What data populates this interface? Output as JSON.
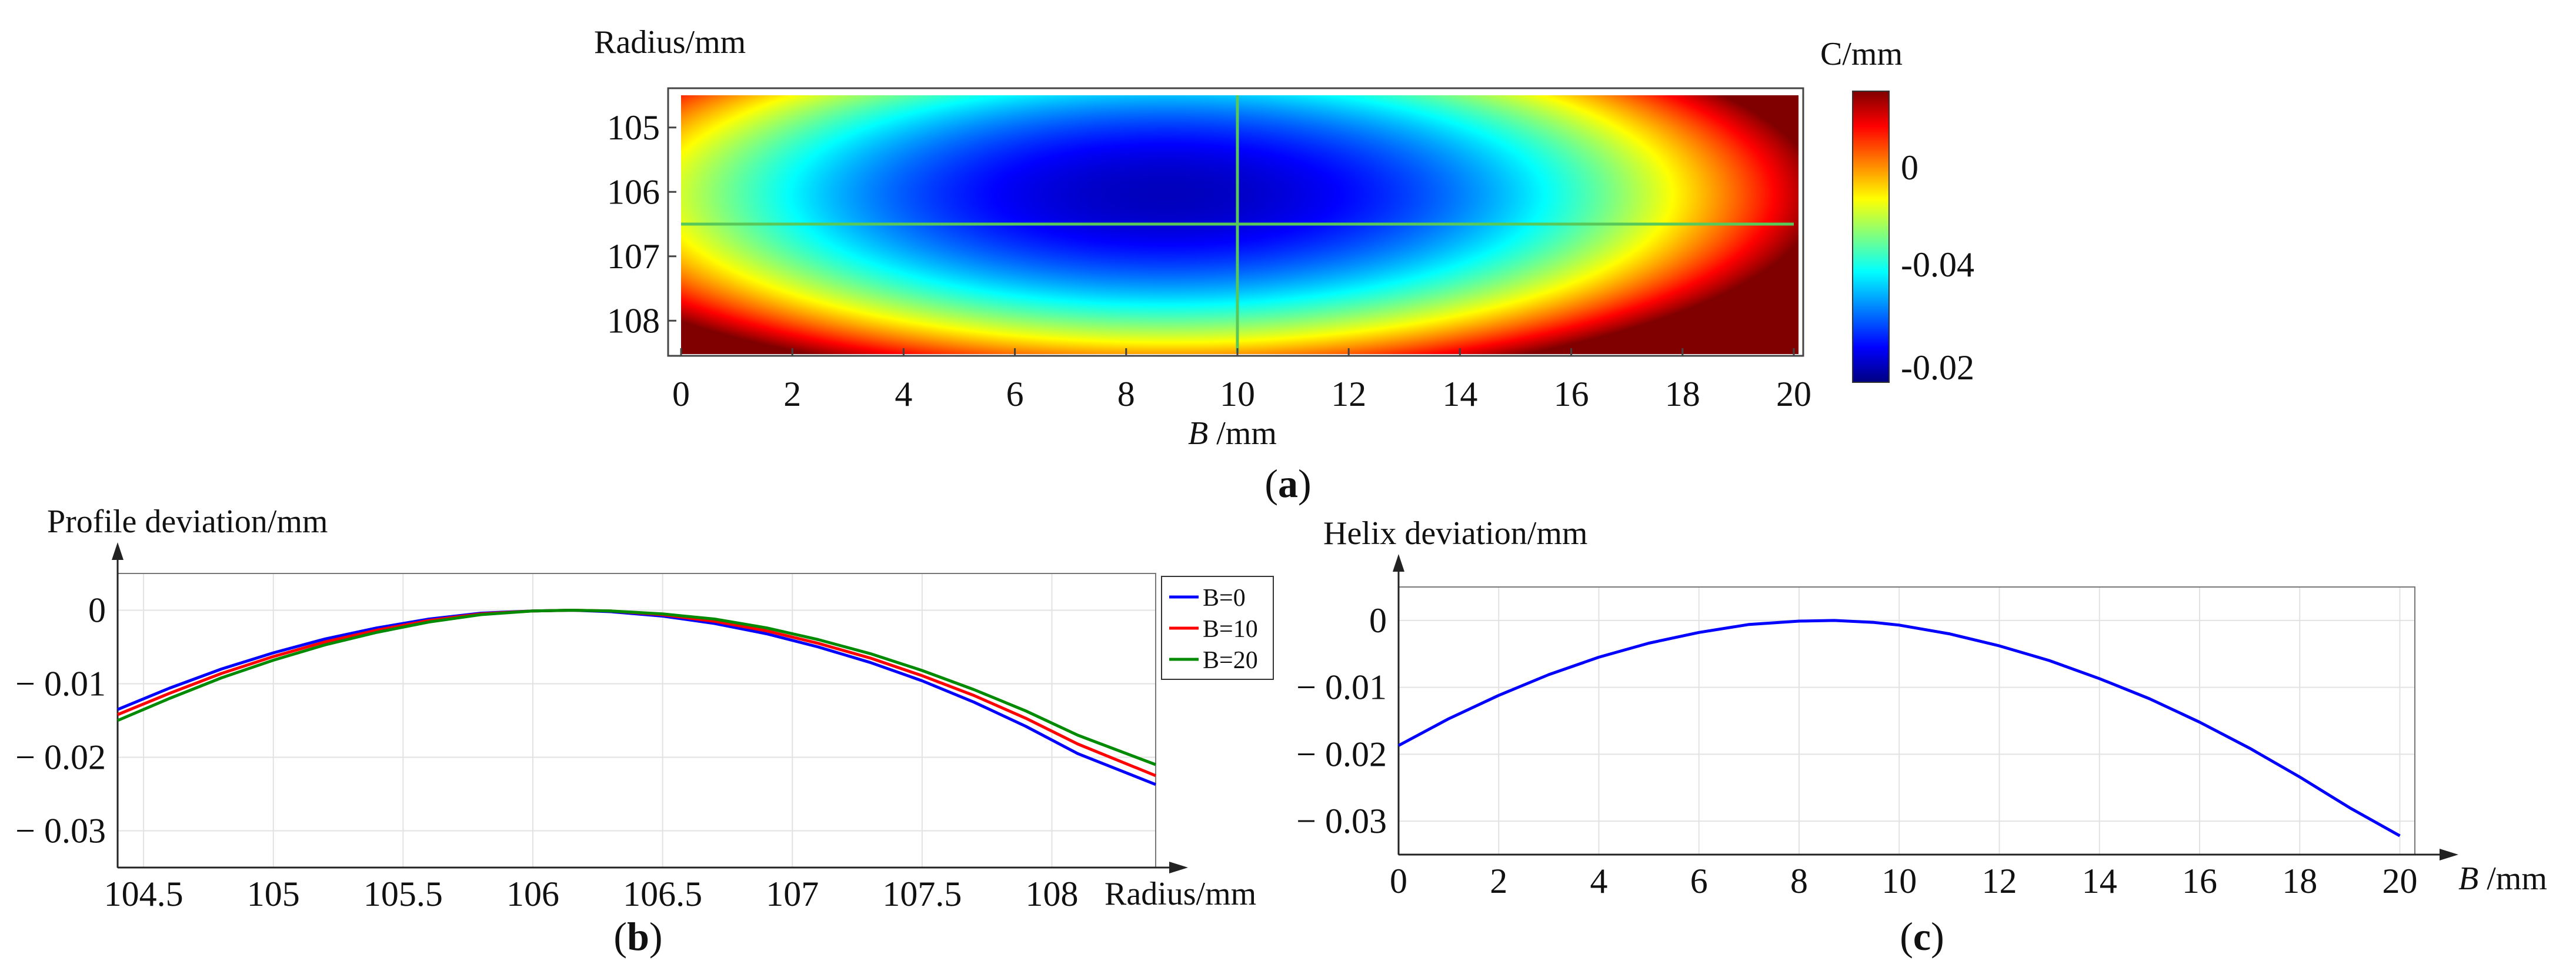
{
  "colors": {
    "blue": "#0000ff",
    "red": "#ff0000",
    "green": "#008a00",
    "crosshair": "#58c858",
    "grid": "#e2e2e2",
    "axis": "#222222"
  },
  "colormap": "jet",
  "chart_data": [
    {
      "id": "a",
      "type": "heatmap",
      "panel_label": "a",
      "ylabel": "Radius/mm",
      "xlabel": "B",
      "xlabel_unit": " /mm",
      "colorbar_title": "C/mm",
      "x_range": [
        0,
        20
      ],
      "y_range": [
        104.5,
        108.5
      ],
      "y_inverted": true,
      "x_ticks": [
        "0",
        "2",
        "4",
        "6",
        "8",
        "10",
        "12",
        "14",
        "16",
        "18",
        "20"
      ],
      "y_ticks": [
        "105",
        "106",
        "107",
        "108"
      ],
      "colorbar_ticks": [
        "0",
        "-0.04",
        "-0.02"
      ],
      "peak": {
        "B": 8.7,
        "radius": 106.15
      },
      "crosshair": {
        "B": 10,
        "radius": 106.5
      },
      "value_range": [
        -0.055,
        0.002
      ]
    },
    {
      "id": "b",
      "type": "line",
      "panel_label": "b",
      "ylabel": "Profile deviation/mm",
      "xlabel": "Radius/mm",
      "xlim": [
        104.4,
        108.4
      ],
      "ylim": [
        -0.035,
        0.005
      ],
      "x_ticks": [
        "104.5",
        "105",
        "105.5",
        "106",
        "106.5",
        "107",
        "107.5",
        "108"
      ],
      "y_ticks": [
        "0",
        "− 0.01",
        "− 0.02",
        "− 0.03"
      ],
      "grid": true,
      "legend_position": "top-right",
      "x": [
        104.4,
        104.6,
        104.8,
        105.0,
        105.2,
        105.4,
        105.6,
        105.8,
        106.0,
        106.15,
        106.3,
        106.5,
        106.7,
        106.9,
        107.1,
        107.3,
        107.5,
        107.7,
        107.9,
        108.1,
        108.4
      ],
      "series": [
        {
          "name": "B=0",
          "color": "blue",
          "values": [
            -0.0135,
            -0.0106,
            -0.008,
            -0.0058,
            -0.0039,
            -0.0024,
            -0.0012,
            -0.0004,
            -0.0001,
            0.0,
            -0.0002,
            -0.0008,
            -0.0018,
            -0.0032,
            -0.005,
            -0.0071,
            -0.0096,
            -0.0125,
            -0.0158,
            -0.0195,
            -0.0237
          ]
        },
        {
          "name": "B=10",
          "color": "red",
          "values": [
            -0.0142,
            -0.0113,
            -0.0086,
            -0.0063,
            -0.0043,
            -0.0027,
            -0.0014,
            -0.0005,
            -0.0001,
            0.0,
            -0.0001,
            -0.0006,
            -0.0015,
            -0.0028,
            -0.0045,
            -0.0065,
            -0.0089,
            -0.0116,
            -0.0147,
            -0.0182,
            -0.0225
          ]
        },
        {
          "name": "B=20",
          "color": "green",
          "values": [
            -0.015,
            -0.012,
            -0.0092,
            -0.0068,
            -0.0047,
            -0.003,
            -0.0016,
            -0.0006,
            -0.0001,
            0.0,
            -0.0001,
            -0.0005,
            -0.0012,
            -0.0024,
            -0.004,
            -0.0059,
            -0.0082,
            -0.0108,
            -0.0137,
            -0.017,
            -0.021
          ]
        }
      ]
    },
    {
      "id": "c",
      "type": "line",
      "panel_label": "c",
      "ylabel": "Helix deviation/mm",
      "xlabel": "B",
      "xlabel_unit": " /mm",
      "xlim": [
        0,
        20.3
      ],
      "ylim": [
        -0.035,
        0.005
      ],
      "x_ticks": [
        "0",
        "2",
        "4",
        "6",
        "8",
        "10",
        "12",
        "14",
        "16",
        "18",
        "20"
      ],
      "y_ticks": [
        "0",
        "− 0.01",
        "− 0.02",
        "− 0.03"
      ],
      "grid": true,
      "x": [
        0,
        1,
        2,
        3,
        4,
        5,
        6,
        7,
        8,
        8.7,
        9.5,
        10,
        11,
        12,
        13,
        14,
        15,
        16,
        17,
        18,
        19,
        20
      ],
      "series": [
        {
          "name": "helix",
          "color": "blue",
          "values": [
            -0.0187,
            -0.0147,
            -0.0112,
            -0.0081,
            -0.0055,
            -0.0034,
            -0.0018,
            -0.0006,
            -0.0001,
            0.0,
            -0.0003,
            -0.0007,
            -0.002,
            -0.0038,
            -0.006,
            -0.0087,
            -0.0117,
            -0.0152,
            -0.0191,
            -0.0234,
            -0.028,
            -0.0322
          ]
        }
      ]
    }
  ]
}
